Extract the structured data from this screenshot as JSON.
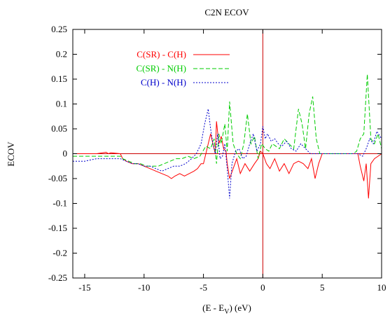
{
  "chart_data": {
    "type": "line",
    "title": "C2N ECOV",
    "ylabel": "ECOV",
    "xlabel": {
      "main": "(E - E",
      "sub": "V",
      "tail": ") (eV)"
    },
    "xlim": [
      -16,
      10
    ],
    "ylim": [
      -0.25,
      0.25
    ],
    "xticks": [
      -15,
      -10,
      -5,
      0,
      5,
      10
    ],
    "yticks": [
      -0.25,
      -0.2,
      -0.15,
      -0.1,
      -0.05,
      0,
      0.05,
      0.1,
      0.15,
      0.2,
      0.25
    ],
    "ytick_labels": [
      "-0.25",
      "-0.2",
      "-0.15",
      "-0.1",
      "-0.05",
      "0",
      "0.05",
      "0.1",
      "0.15",
      "0.2",
      "0.25"
    ],
    "xtick_labels": [
      "-15",
      "-10",
      "-5",
      "0",
      "5",
      "10"
    ],
    "legend_position": "top-left",
    "reference_lines": {
      "y": 0,
      "x": 0,
      "color": "#cc0000"
    },
    "series": [
      {
        "name": "C(SR) - C(H)",
        "color": "#ff0000",
        "dash": "solid",
        "x": [
          -16,
          -15,
          -14,
          -13.2,
          -13,
          -12.8,
          -12,
          -11.8,
          -11.5,
          -11,
          -10.5,
          -10,
          -9.5,
          -9,
          -8.5,
          -8,
          -7.7,
          -7.4,
          -7,
          -6.6,
          -6.2,
          -5.8,
          -5.5,
          -5.2,
          -5,
          -4.7,
          -4.4,
          -4.2,
          -4,
          -3.9,
          -3.7,
          -3.5,
          -3.3,
          -3.1,
          -3,
          -2.8,
          -2.5,
          -2.2,
          -1.9,
          -1.5,
          -1.1,
          -0.7,
          -0.4,
          -0.2,
          0,
          0.3,
          0.6,
          1,
          1.4,
          1.8,
          2.2,
          2.6,
          3,
          3.4,
          3.8,
          4.1,
          4.4,
          4.7,
          5,
          6,
          7,
          7.5,
          8,
          8.2,
          8.5,
          8.7,
          8.9,
          9.1,
          9.4,
          9.7,
          10
        ],
        "y": [
          0,
          0,
          0,
          0.003,
          0,
          0.002,
          0,
          -0.01,
          -0.015,
          -0.02,
          -0.02,
          -0.025,
          -0.03,
          -0.035,
          -0.04,
          -0.045,
          -0.05,
          -0.045,
          -0.04,
          -0.045,
          -0.04,
          -0.035,
          -0.03,
          -0.02,
          -0.02,
          0.01,
          0.04,
          0.02,
          0.0,
          0.065,
          0.02,
          0.035,
          0.01,
          0.005,
          -0.02,
          -0.05,
          -0.03,
          -0.01,
          -0.04,
          -0.02,
          -0.035,
          -0.02,
          -0.01,
          0.005,
          0.0,
          -0.02,
          -0.03,
          -0.01,
          -0.035,
          -0.02,
          -0.04,
          -0.02,
          -0.015,
          -0.02,
          -0.03,
          -0.01,
          -0.05,
          -0.02,
          0,
          0,
          0,
          0,
          0,
          -0.025,
          -0.055,
          -0.02,
          -0.09,
          -0.02,
          -0.01,
          -0.005,
          0
        ]
      },
      {
        "name": "C(SR) - N(H)",
        "color": "#00cc00",
        "dash": "6,3",
        "x": [
          -16,
          -15,
          -14,
          -13,
          -12,
          -11.8,
          -11.3,
          -10.8,
          -10.3,
          -9.8,
          -9.3,
          -8.8,
          -8.3,
          -7.8,
          -7.3,
          -6.8,
          -6.3,
          -5.8,
          -5.3,
          -4.8,
          -4.4,
          -4.1,
          -3.9,
          -3.7,
          -3.5,
          -3.2,
          -3,
          -2.8,
          -2.5,
          -2.2,
          -1.9,
          -1.6,
          -1.3,
          -1,
          -0.7,
          -0.4,
          -0.1,
          0.2,
          0.5,
          0.8,
          1.1,
          1.4,
          1.8,
          2.2,
          2.6,
          3,
          3.3,
          3.6,
          3.9,
          4.2,
          4.5,
          4.8,
          5.2,
          6,
          7,
          7.6,
          7.9,
          8.2,
          8.5,
          8.8,
          9.1,
          9.4,
          9.7,
          10
        ],
        "y": [
          -0.005,
          -0.005,
          -0.005,
          -0.005,
          -0.005,
          -0.01,
          -0.015,
          -0.02,
          -0.02,
          -0.025,
          -0.025,
          -0.025,
          -0.02,
          -0.015,
          -0.01,
          -0.01,
          -0.005,
          -0.01,
          -0.005,
          0.015,
          0.01,
          0.03,
          -0.02,
          0.04,
          0.02,
          0.06,
          0.005,
          0.105,
          0.02,
          0.0,
          -0.01,
          0.02,
          0.08,
          0.02,
          0.035,
          -0.01,
          0.02,
          0.01,
          0.005,
          0.02,
          0.015,
          0.01,
          0.03,
          0.02,
          0.01,
          0.09,
          0.06,
          0.01,
          0.08,
          0.115,
          0.03,
          0.0,
          0.0,
          0.0,
          0.0,
          0.0,
          0.005,
          0.03,
          0.04,
          0.16,
          0.03,
          0.02,
          0.04,
          0.01
        ]
      },
      {
        "name": "C(H) - N(H)",
        "color": "#0000cc",
        "dash": "2,2",
        "x": [
          -16,
          -15,
          -14,
          -13,
          -12,
          -11.5,
          -11,
          -10.5,
          -10,
          -9.5,
          -9,
          -8.5,
          -8,
          -7.5,
          -7,
          -6.5,
          -6,
          -5.6,
          -5.2,
          -4.9,
          -4.6,
          -4.4,
          -4.2,
          -4,
          -3.8,
          -3.6,
          -3.4,
          -3.2,
          -3,
          -2.8,
          -2.6,
          -2.3,
          -2,
          -1.7,
          -1.4,
          -1.1,
          -0.8,
          -0.5,
          -0.2,
          0,
          0.2,
          0.4,
          0.7,
          1,
          1.3,
          1.6,
          2,
          2.4,
          2.8,
          3.2,
          3.6,
          4,
          4.4,
          5,
          6,
          7,
          8,
          8.4,
          8.7,
          9,
          9.3,
          9.6,
          10
        ],
        "y": [
          -0.015,
          -0.015,
          -0.01,
          -0.01,
          -0.01,
          -0.015,
          -0.02,
          -0.02,
          -0.025,
          -0.025,
          -0.03,
          -0.035,
          -0.03,
          -0.025,
          -0.025,
          -0.02,
          -0.01,
          0.0,
          0.02,
          0.06,
          0.09,
          0.05,
          0.02,
          0.0,
          0.04,
          -0.01,
          -0.005,
          0.02,
          -0.03,
          -0.09,
          -0.02,
          0.005,
          0.01,
          -0.01,
          -0.005,
          0.02,
          0.04,
          0.005,
          0.02,
          0.055,
          0.03,
          0.04,
          0.025,
          0.03,
          0.02,
          0.015,
          0.025,
          0.01,
          0.005,
          0.02,
          0.01,
          0.0,
          0.0,
          0.0,
          0.0,
          0.0,
          0.0,
          -0.005,
          0.01,
          0.03,
          0.02,
          0.045,
          0.03
        ]
      }
    ]
  }
}
